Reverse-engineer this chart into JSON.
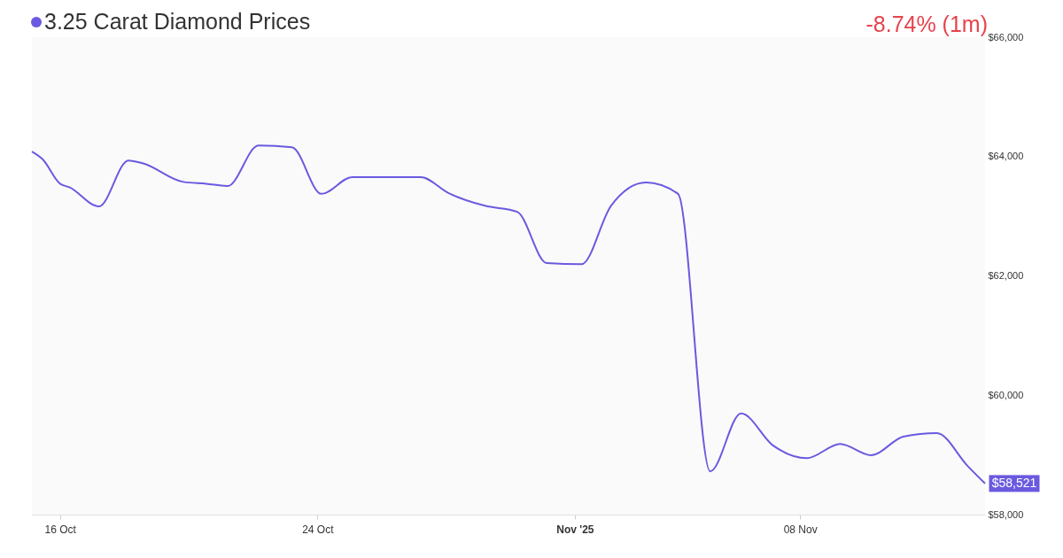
{
  "chart_data": {
    "type": "line",
    "title": "3.25 Carat Diamond Prices",
    "annotations": [
      "-8.74% (1m)"
    ],
    "x": [
      "2025-10-15T03:00",
      "2025-10-15T11:00",
      "2025-10-16T00:00",
      "2025-10-16T07:00",
      "2025-10-17T05:00",
      "2025-10-18T03:00",
      "2025-10-18T14:00",
      "2025-10-19T20:00",
      "2025-10-20T13:00",
      "2025-10-21T05:00",
      "2025-10-22T04:00",
      "2025-10-23T05:00",
      "2025-10-24T03:00",
      "2025-10-25T02:00",
      "2025-10-27T05:00",
      "2025-10-28T02:00",
      "2025-10-29T05:00",
      "2025-10-30T05:00",
      "2025-10-31T03:00",
      "2025-11-01T05:00",
      "2025-11-02T03:00",
      "2025-11-03T05:00",
      "2025-11-04T05:00",
      "2025-11-05T05:00",
      "2025-11-06T04:00",
      "2025-11-07T04:00",
      "2025-11-08T05:00",
      "2025-11-09T06:00",
      "2025-11-10T05:00",
      "2025-11-11T05:00",
      "2025-11-12T06:00",
      "2025-11-13T05:00",
      "2025-11-13T18:00"
    ],
    "series": [
      {
        "color": "#6a5ae0",
        "values": [
          64085,
          63955,
          63545,
          63485,
          63165,
          63935,
          63885,
          63575,
          63545,
          63505,
          64185,
          64155,
          63375,
          63655,
          63655,
          63385,
          63175,
          63075,
          62215,
          62195,
          63175,
          63565,
          63375,
          58725,
          59695,
          59155,
          58945,
          59185,
          58995,
          59305,
          59365,
          58815,
          58521
        ],
        "value_labels": [
          null,
          null,
          null,
          null,
          null,
          null,
          null,
          null,
          null,
          null,
          null,
          null,
          null,
          null,
          null,
          null,
          null,
          null,
          null,
          null,
          null,
          null,
          null,
          null,
          null,
          null,
          null,
          null,
          null,
          null,
          null,
          null,
          "$58,521"
        ]
      }
    ],
    "xlim": [
      "2025-10-15T03:00",
      "2025-11-13T18:00"
    ],
    "xticks": [
      {
        "value": "2025-10-16",
        "label": "16 Oct"
      },
      {
        "value": "2025-10-24",
        "label": "24 Oct"
      },
      {
        "value": "2025-11-01",
        "label": "Nov '25"
      },
      {
        "value": "2025-11-08",
        "label": "08 Nov"
      }
    ],
    "ylim": [
      58000,
      66000
    ],
    "yticks": [
      {
        "value": 58000,
        "label": "$58,000"
      },
      {
        "value": 60000,
        "label": "$60,000"
      },
      {
        "value": 62000,
        "label": "$62,000"
      },
      {
        "value": 64000,
        "label": "$64,000"
      },
      {
        "value": 66000,
        "label": "$66,000"
      }
    ],
    "grid": false
  }
}
